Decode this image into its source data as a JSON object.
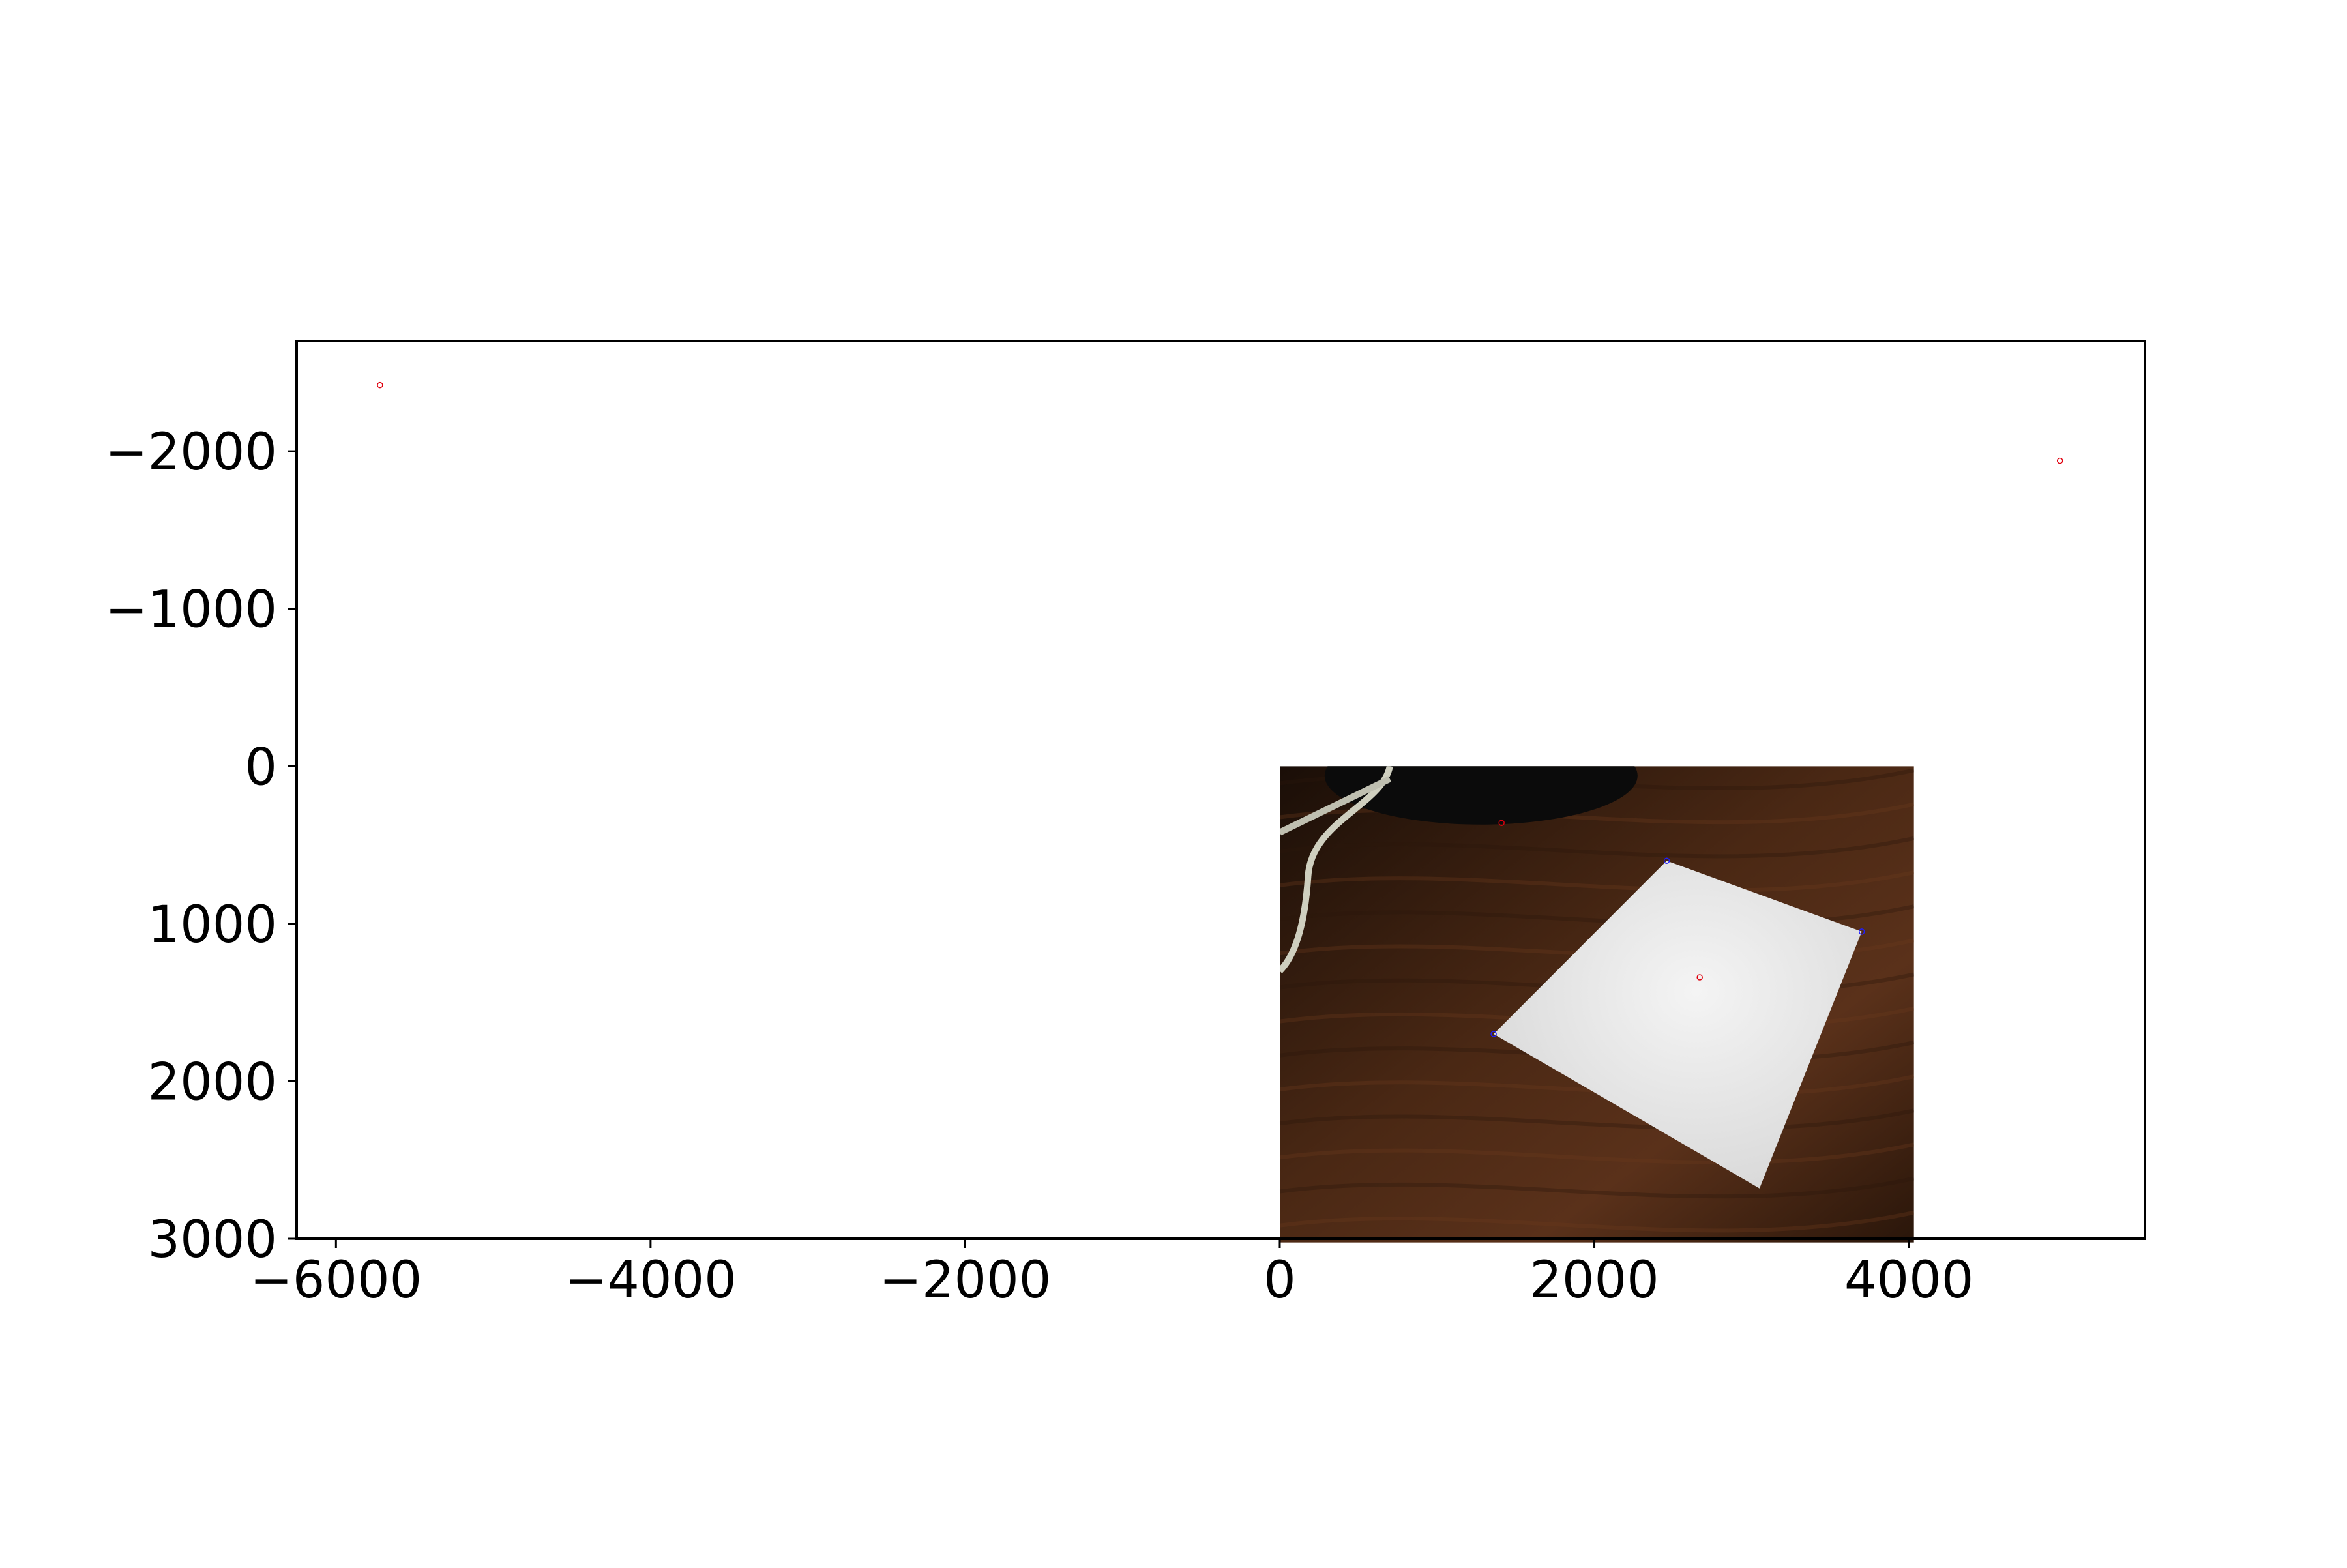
{
  "chart_data": {
    "type": "scatter",
    "title": "",
    "xlabel": "",
    "ylabel": "",
    "xlim": [
      -6250,
      5500
    ],
    "ylim": [
      3000,
      -2700
    ],
    "y_inverted": true,
    "grid": false,
    "legend": "none",
    "xticks": [
      -6000,
      -4000,
      -2000,
      0,
      2000,
      4000
    ],
    "xtick_labels": [
      "−6000",
      "−4000",
      "−2000",
      "0",
      "2000",
      "4000"
    ],
    "yticks": [
      -2000,
      -1000,
      0,
      1000,
      2000,
      3000
    ],
    "ytick_labels": [
      "−2000",
      "−1000",
      "0",
      "1000",
      "2000",
      "3000"
    ],
    "background_image": {
      "description": "photo of a white sheet of paper on a wooden desk",
      "extent_x": [
        0,
        4032
      ],
      "extent_y": [
        0,
        3024
      ],
      "paper_corners": [
        [
          2460,
          600
        ],
        [
          3700,
          1050
        ],
        [
          1360,
          1700
        ],
        [
          3050,
          2680
        ]
      ]
    },
    "series": [
      {
        "marker": "circle-open",
        "color": "#e0000e",
        "points": [
          [
            -5720,
            -2420
          ],
          [
            4960,
            -1940
          ],
          [
            2670,
            1340
          ],
          [
            1410,
            360
          ]
        ]
      },
      {
        "marker": "circle-open",
        "color": "#1f1fff",
        "points": [
          [
            2460,
            600
          ],
          [
            3700,
            1050
          ],
          [
            1360,
            1700
          ]
        ]
      }
    ]
  }
}
